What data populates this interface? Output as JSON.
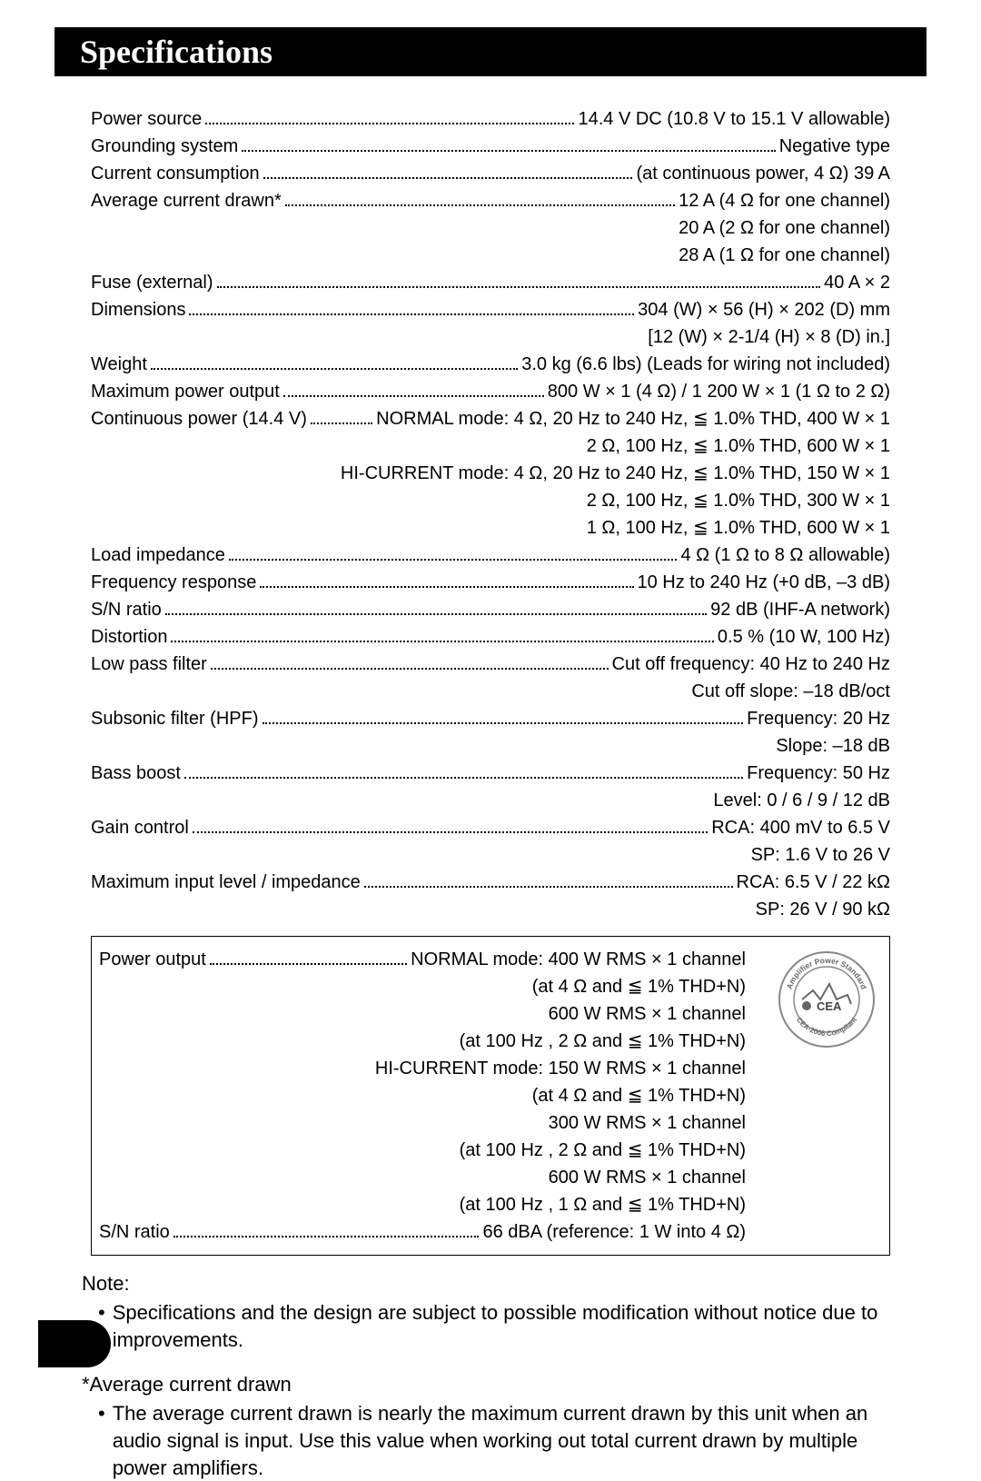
{
  "title": "Specifications",
  "specs": [
    {
      "label": "Power source",
      "value": "14.4 V DC (10.8 V to 15.1 V allowable)"
    },
    {
      "label": "Grounding system",
      "value": "Negative type"
    },
    {
      "label": "Current consumption",
      "value": "(at continuous power, 4 Ω) 39 A"
    },
    {
      "label": "Average current drawn*",
      "value": "12 A (4 Ω for one channel)"
    },
    {
      "cont": "20 A (2 Ω for one channel)"
    },
    {
      "cont": "28 A (1 Ω for one channel)"
    },
    {
      "label": "Fuse (external)",
      "value": "40 A × 2"
    },
    {
      "label": "Dimensions",
      "value": "304 (W) × 56 (H) × 202 (D) mm"
    },
    {
      "cont": "[12 (W) × 2-1/4 (H) × 8 (D) in.]"
    },
    {
      "label": "Weight",
      "value": "3.0 kg (6.6 lbs) (Leads for wiring not included)"
    },
    {
      "label": "Maximum power output",
      "value": "800 W × 1 (4 Ω) / 1 200 W × 1 (1 Ω to 2 Ω)"
    },
    {
      "label": "Continuous power (14.4 V)",
      "value": "NORMAL mode: 4 Ω, 20 Hz to 240 Hz, ≦ 1.0% THD, 400 W × 1"
    },
    {
      "cont": "2 Ω, 100 Hz, ≦ 1.0% THD, 600 W × 1"
    },
    {
      "cont": "HI-CURRENT mode: 4 Ω, 20 Hz to 240 Hz, ≦ 1.0% THD, 150 W × 1"
    },
    {
      "cont": "2 Ω, 100 Hz, ≦ 1.0% THD, 300 W × 1"
    },
    {
      "cont": "1 Ω, 100 Hz, ≦ 1.0% THD, 600 W × 1"
    },
    {
      "label": "Load impedance",
      "value": "4 Ω (1 Ω to 8 Ω allowable)"
    },
    {
      "label": "Frequency response",
      "value": "10 Hz to 240 Hz (+0 dB, –3 dB)"
    },
    {
      "label": "S/N ratio",
      "value": "92 dB (IHF-A network)"
    },
    {
      "label": "Distortion",
      "value": "0.5 % (10 W, 100 Hz)"
    },
    {
      "label": "Low pass filter",
      "value": "Cut off frequency: 40 Hz to 240 Hz"
    },
    {
      "cont": "Cut off slope: –18 dB/oct"
    },
    {
      "label": "Subsonic filter (HPF)",
      "value": "Frequency: 20 Hz"
    },
    {
      "cont": "Slope: –18 dB"
    },
    {
      "label": "Bass boost",
      "value": "Frequency: 50 Hz"
    },
    {
      "cont": "Level: 0 / 6 / 9 / 12 dB"
    },
    {
      "label": "Gain control",
      "value": "RCA: 400 mV to 6.5 V"
    },
    {
      "cont": "SP: 1.6 V to 26 V"
    },
    {
      "label": "Maximum input level / impedance",
      "value": "RCA: 6.5 V / 22 kΩ"
    },
    {
      "cont": "SP: 26 V / 90 kΩ"
    }
  ],
  "boxed_specs": [
    {
      "label": "Power output",
      "value": "NORMAL mode: 400 W RMS × 1 channel"
    },
    {
      "cont": "(at 4 Ω and ≦ 1% THD+N)"
    },
    {
      "cont": "600 W RMS × 1 channel"
    },
    {
      "cont": "(at 100 Hz , 2 Ω and ≦ 1% THD+N)"
    },
    {
      "cont": "HI-CURRENT mode: 150 W RMS × 1 channel"
    },
    {
      "cont": "(at 4 Ω and ≦ 1% THD+N)"
    },
    {
      "cont": "300 W RMS × 1 channel"
    },
    {
      "cont": "(at 100 Hz , 2 Ω and ≦ 1% THD+N)"
    },
    {
      "cont": "600 W RMS × 1 channel"
    },
    {
      "cont": "(at 100 Hz , 1 Ω and ≦ 1% THD+N)"
    },
    {
      "label": "S/N ratio",
      "value": "66 dBA (reference: 1 W into 4 Ω)"
    }
  ],
  "cea_badge": {
    "top_text": "Amplifier Power Standard",
    "mid_text": "CEA",
    "bottom_text": "CEA-2006 Compliant",
    "stroke": "#888888",
    "fill": "#ffffff"
  },
  "notes": {
    "heading1": "Note:",
    "body1": "Specifications and the design are subject to possible modification without notice due to improvements.",
    "heading2": "*Average current drawn",
    "body2": "The average current drawn is nearly the maximum current drawn by this unit when an audio signal is input. Use this value when working out total current drawn by multiple power amplifiers."
  }
}
